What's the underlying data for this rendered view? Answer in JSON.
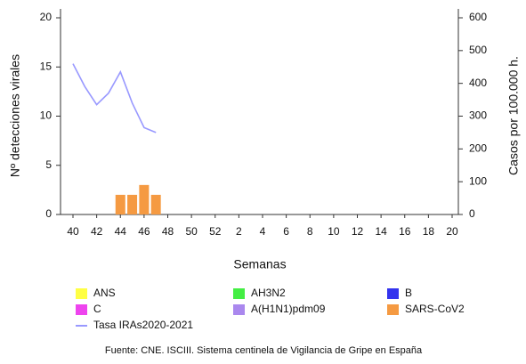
{
  "chart_data": {
    "type": "bar",
    "xlabel": "Semanas",
    "ylabel": "Nº detecciones virales",
    "y2label": "Casos por 100.000 h.",
    "source": "Fuente: CNE. ISCIII. Sistema centinela de Vigilancia de Gripe en España",
    "categories": [
      "40",
      null,
      "42",
      null,
      "44",
      null,
      "46",
      null,
      "48",
      null,
      "50",
      null,
      "52",
      null,
      "2",
      null,
      "4",
      null,
      "6",
      null,
      "8",
      null,
      "10",
      null,
      "12",
      null,
      "14",
      null,
      "16",
      null,
      "18",
      null,
      "20"
    ],
    "ylim": [
      0,
      20
    ],
    "yticks": [
      0,
      5,
      10,
      15,
      20
    ],
    "y2lim": [
      0,
      600
    ],
    "y2ticks": [
      0,
      100,
      200,
      300,
      400,
      500,
      600
    ],
    "series": [
      {
        "name": "ANS",
        "color": "#ffff44",
        "type": "bar",
        "values": [
          null,
          null,
          null,
          null,
          null,
          null,
          null,
          null,
          null,
          null,
          null,
          null,
          null,
          null,
          null,
          null,
          null,
          null,
          null,
          null,
          null,
          null,
          null,
          null,
          null,
          null,
          null,
          null,
          null,
          null,
          null,
          null,
          null
        ]
      },
      {
        "name": "AH3N2",
        "color": "#44ee44",
        "type": "bar",
        "values": [
          null,
          null,
          null,
          null,
          null,
          null,
          null,
          null,
          null,
          null,
          null,
          null,
          null,
          null,
          null,
          null,
          null,
          null,
          null,
          null,
          null,
          null,
          null,
          null,
          null,
          null,
          null,
          null,
          null,
          null,
          null,
          null,
          null
        ]
      },
      {
        "name": "B",
        "color": "#3333ee",
        "type": "bar",
        "values": [
          null,
          null,
          null,
          null,
          null,
          null,
          null,
          null,
          null,
          null,
          null,
          null,
          null,
          null,
          null,
          null,
          null,
          null,
          null,
          null,
          null,
          null,
          null,
          null,
          null,
          null,
          null,
          null,
          null,
          null,
          null,
          null,
          null
        ]
      },
      {
        "name": "C",
        "color": "#ee44ee",
        "type": "bar",
        "values": [
          null,
          null,
          null,
          null,
          null,
          null,
          null,
          null,
          null,
          null,
          null,
          null,
          null,
          null,
          null,
          null,
          null,
          null,
          null,
          null,
          null,
          null,
          null,
          null,
          null,
          null,
          null,
          null,
          null,
          null,
          null,
          null,
          null
        ]
      },
      {
        "name": "A(H1N1)pdm09",
        "color": "#aa88ee",
        "type": "bar",
        "values": [
          null,
          null,
          null,
          null,
          null,
          null,
          null,
          null,
          null,
          null,
          null,
          null,
          null,
          null,
          null,
          null,
          null,
          null,
          null,
          null,
          null,
          null,
          null,
          null,
          null,
          null,
          null,
          null,
          null,
          null,
          null,
          null,
          null
        ]
      },
      {
        "name": "SARS-CoV2",
        "color": "#f59a42",
        "type": "bar",
        "values": [
          null,
          null,
          null,
          null,
          2,
          2,
          3,
          2,
          null,
          null,
          null,
          null,
          null,
          null,
          null,
          null,
          null,
          null,
          null,
          null,
          null,
          null,
          null,
          null,
          null,
          null,
          null,
          null,
          null,
          null,
          null,
          null,
          null
        ]
      },
      {
        "name": "Tasa IRAs2020-2021",
        "color": "#9999ff",
        "type": "line",
        "axis": "y2",
        "values": [
          460,
          390,
          335,
          370,
          435,
          340,
          265,
          250,
          null,
          null,
          null,
          null,
          null,
          null,
          null,
          null,
          null,
          null,
          null,
          null,
          null,
          null,
          null,
          null,
          null,
          null,
          null,
          null,
          null,
          null,
          null,
          null,
          null
        ]
      }
    ]
  }
}
